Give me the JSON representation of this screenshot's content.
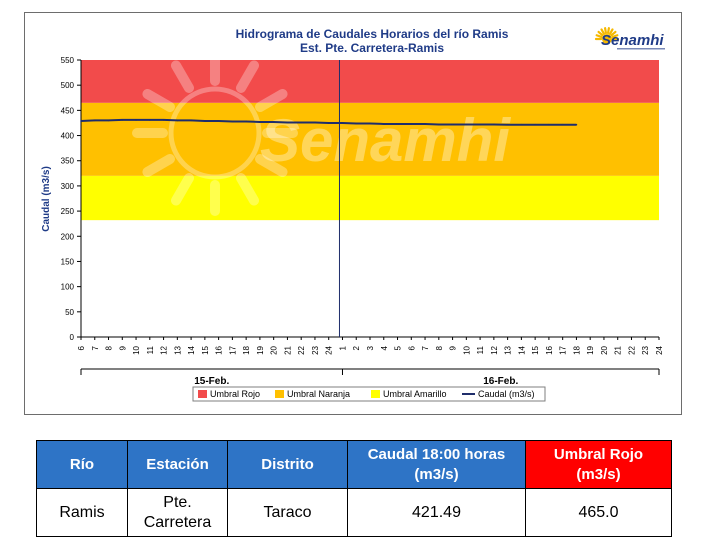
{
  "chart": {
    "title_line1": "Hidrograma de Caudales Horarios del río Ramis",
    "title_line2": "Est. Pte. Carretera-Ramis",
    "logo_text": "Senamhi",
    "watermark_text": "Senamhi",
    "ylabel": "Caudal  (m3/s)",
    "day_labels": [
      "15-Feb.",
      "16-Feb."
    ],
    "legend": [
      "Umbral Rojo",
      "Umbral Naranja",
      "Umbral Amarillo",
      "Caudal (m3/s)"
    ],
    "colors": {
      "red": "#f24b4b",
      "orange": "#ffc000",
      "yellow": "#ffff00",
      "line": "#1f2d6b",
      "accent": "#1f3b87"
    }
  },
  "chart_data": {
    "type": "line",
    "title": "Hidrograma de Caudales Horarios del río Ramis",
    "subtitle": "Est. Pte. Carretera-Ramis",
    "ylabel": "Caudal  (m3/s)",
    "ylim": [
      0,
      550
    ],
    "yticks": [
      0,
      50,
      100,
      150,
      200,
      250,
      300,
      350,
      400,
      450,
      500,
      550
    ],
    "x_tick_labels": [
      "6",
      "7",
      "8",
      "9",
      "10",
      "11",
      "12",
      "13",
      "14",
      "15",
      "16",
      "17",
      "18",
      "19",
      "20",
      "21",
      "22",
      "23",
      "24",
      "1",
      "2",
      "3",
      "4",
      "5",
      "6",
      "7",
      "8",
      "9",
      "10",
      "11",
      "12",
      "13",
      "14",
      "15",
      "16",
      "17",
      "18",
      "19",
      "20",
      "21",
      "22",
      "23",
      "24"
    ],
    "thresholds": [
      {
        "name": "Umbral Amarillo",
        "from": 232,
        "to": 320
      },
      {
        "name": "Umbral Naranja",
        "from": 320,
        "to": 465
      },
      {
        "name": "Umbral Rojo",
        "from": 465,
        "to": 550
      }
    ],
    "series": [
      {
        "name": "Caudal (m3/s)",
        "x_index": [
          0,
          1,
          2,
          3,
          4,
          5,
          6,
          7,
          8,
          9,
          10,
          11,
          12,
          13,
          14,
          15,
          16,
          17,
          18,
          19,
          20,
          21,
          22,
          23,
          24,
          25,
          26,
          27,
          28,
          29,
          30,
          31,
          32,
          33,
          34,
          35,
          36
        ],
        "values": [
          429,
          430,
          430,
          431,
          431,
          431,
          431,
          430,
          430,
          429,
          429,
          428,
          428,
          427,
          427,
          426,
          426,
          426,
          425,
          425,
          424,
          424,
          423,
          423,
          423,
          423,
          422,
          422,
          422,
          422,
          422,
          421.5,
          421.5,
          421.5,
          421.5,
          421.5,
          421.49
        ]
      }
    ]
  },
  "table": {
    "headers": {
      "rio": "Río",
      "estacion": "Estación",
      "distrito": "Distrito",
      "caudal_l1": "Caudal  18:00 horas",
      "caudal_l2": "(m3/s)",
      "umbral_l1": "Umbral Rojo",
      "umbral_l2": "(m3/s)"
    },
    "row": {
      "rio": "Ramis",
      "estacion_l1": "Pte.",
      "estacion_l2": "Carretera",
      "distrito": "Taraco",
      "caudal": "421.49",
      "umbral": "465.0"
    }
  }
}
